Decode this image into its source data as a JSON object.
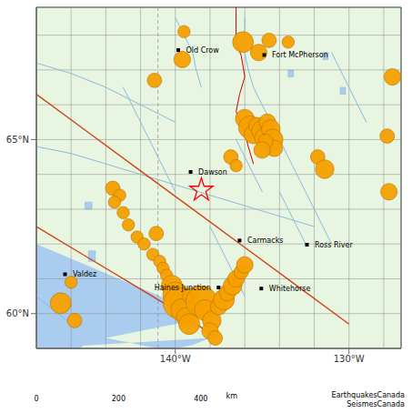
{
  "chart_data": {
    "type": "scatter",
    "xlim": [
      -148,
      -127
    ],
    "ylim": [
      59.0,
      68.8
    ],
    "xticks": [
      {
        "value": -140,
        "label": "140°W"
      },
      {
        "value": -130,
        "label": "130°W"
      }
    ],
    "yticks": [
      {
        "value": 60,
        "label": "60°N"
      },
      {
        "value": 65,
        "label": "65°N"
      }
    ],
    "land_color": "#e8f5e0",
    "grid_lines": {
      "color": "#888888",
      "x": [
        -148,
        -146,
        -144,
        -142,
        -140,
        -138,
        -136,
        -134,
        -132,
        -130,
        -128
      ],
      "y": [
        60,
        61,
        62,
        63,
        64,
        65,
        66,
        67,
        68
      ]
    },
    "water": {
      "color": "#aaccee",
      "polygons": [
        [
          [
            -148,
            61.8
          ],
          [
            -147.5,
            61.4
          ],
          [
            -147,
            61.0
          ],
          [
            -146.5,
            60.7
          ],
          [
            -146,
            60.4
          ],
          [
            -145.5,
            60.1
          ],
          [
            -145,
            59.8
          ],
          [
            -144.5,
            59.5
          ],
          [
            -144,
            59.3
          ],
          [
            -143,
            59.2
          ],
          [
            -142,
            59.1
          ],
          [
            -141,
            59.0
          ],
          [
            -140,
            59.0
          ],
          [
            -139,
            59.1
          ],
          [
            -138.5,
            59.2
          ],
          [
            -138,
            59.3
          ],
          [
            -148,
            59.0
          ]
        ],
        [
          [
            -148,
            62.2
          ],
          [
            -148,
            59.0
          ],
          [
            -146.5,
            59.0
          ],
          [
            -145.5,
            59.0
          ],
          [
            -145,
            59.2
          ],
          [
            -144,
            59.3
          ],
          [
            -143,
            59.4
          ],
          [
            -142,
            59.5
          ],
          [
            -141,
            59.6
          ],
          [
            -140,
            59.7
          ],
          [
            -139,
            59.8
          ],
          [
            -138.5,
            60.0
          ],
          [
            -148,
            62.0
          ]
        ]
      ]
    },
    "rivers": {
      "color": "#88bbdd",
      "lines": [
        [
          [
            -148,
            64.8
          ],
          [
            -146,
            64.6
          ],
          [
            -144,
            64.3
          ],
          [
            -142,
            64.0
          ],
          [
            -140,
            63.7
          ],
          [
            -138,
            63.4
          ],
          [
            -136,
            63.1
          ],
          [
            -134,
            62.8
          ],
          [
            -132,
            62.5
          ]
        ],
        [
          [
            -148,
            67.2
          ],
          [
            -146,
            66.9
          ],
          [
            -144,
            66.5
          ],
          [
            -142,
            66.0
          ],
          [
            -140,
            65.5
          ]
        ],
        [
          [
            -140,
            68.5
          ],
          [
            -139.5,
            68.0
          ],
          [
            -139.0,
            67.5
          ],
          [
            -138.8,
            67.0
          ],
          [
            -138.5,
            66.5
          ]
        ],
        [
          [
            -136,
            68.5
          ],
          [
            -136,
            67.5
          ],
          [
            -135.8,
            67.0
          ],
          [
            -135.5,
            66.5
          ],
          [
            -135.0,
            66.0
          ],
          [
            -134.5,
            65.5
          ],
          [
            -134.0,
            65.0
          ],
          [
            -133.5,
            64.5
          ],
          [
            -133.0,
            64.0
          ],
          [
            -132.5,
            63.5
          ],
          [
            -132.0,
            63.0
          ],
          [
            -131.5,
            62.5
          ],
          [
            -131.0,
            62.0
          ]
        ],
        [
          [
            -131,
            67.5
          ],
          [
            -130.5,
            67.0
          ],
          [
            -130,
            66.5
          ],
          [
            -129.5,
            66.0
          ],
          [
            -129,
            65.5
          ]
        ],
        [
          [
            -136.5,
            65.0
          ],
          [
            -136.0,
            64.5
          ],
          [
            -135.5,
            64.0
          ],
          [
            -135.0,
            63.5
          ]
        ],
        [
          [
            -143,
            66.5
          ],
          [
            -142.5,
            66.0
          ],
          [
            -142.0,
            65.5
          ],
          [
            -141.5,
            65.0
          ],
          [
            -141.0,
            64.5
          ],
          [
            -140.5,
            64.0
          ],
          [
            -140.0,
            63.5
          ]
        ],
        [
          [
            -138,
            62.5
          ],
          [
            -137.5,
            62.0
          ],
          [
            -137.0,
            61.5
          ],
          [
            -136.5,
            61.0
          ],
          [
            -136.0,
            60.5
          ]
        ],
        [
          [
            -134,
            63.5
          ],
          [
            -133.5,
            63.0
          ],
          [
            -133.0,
            62.5
          ],
          [
            -132.5,
            62.0
          ]
        ],
        [
          [
            -148,
            60.5
          ],
          [
            -147.5,
            60.3
          ],
          [
            -147.0,
            60.1
          ],
          [
            -146.5,
            59.9
          ],
          [
            -146.0,
            59.7
          ]
        ]
      ]
    },
    "lakes": {
      "polygons": [
        [
          [
            -131.5,
            67.5
          ],
          [
            -131.2,
            67.5
          ],
          [
            -131.2,
            67.3
          ],
          [
            -131.5,
            67.3
          ]
        ],
        [
          [
            -130.5,
            66.5
          ],
          [
            -130.2,
            66.5
          ],
          [
            -130.2,
            66.3
          ],
          [
            -130.5,
            66.3
          ]
        ],
        [
          [
            -133.5,
            67.0
          ],
          [
            -133.2,
            67.0
          ],
          [
            -133.2,
            66.8
          ],
          [
            -133.5,
            66.8
          ]
        ],
        [
          [
            -145.2,
            63.2
          ],
          [
            -144.8,
            63.2
          ],
          [
            -144.8,
            63.0
          ],
          [
            -145.2,
            63.0
          ]
        ],
        [
          [
            -145.0,
            61.8
          ],
          [
            -144.6,
            61.8
          ],
          [
            -144.6,
            61.5
          ],
          [
            -145.0,
            61.5
          ]
        ]
      ]
    },
    "boundary": {
      "x": -141,
      "color": "#999999",
      "line_style": "dashed"
    },
    "border": {
      "color": "#cc0000",
      "points": [
        [
          -136.5,
          68.8
        ],
        [
          -136.5,
          67.8
        ],
        [
          -136.2,
          67.4
        ],
        [
          -136.0,
          66.8
        ],
        [
          -136.3,
          66.3
        ],
        [
          -136.5,
          65.8
        ],
        [
          -136.0,
          65.2
        ],
        [
          -135.8,
          64.8
        ],
        [
          -135.5,
          64.3
        ]
      ]
    },
    "faults": {
      "color": "#cc3300",
      "lines": [
        [
          [
            -148,
            66.3
          ],
          [
            -145,
            65.2
          ],
          [
            -142,
            64.1
          ],
          [
            -139,
            63.0
          ],
          [
            -136,
            61.9
          ],
          [
            -133,
            60.8
          ],
          [
            -130,
            59.7
          ]
        ],
        [
          [
            -148,
            62.5
          ],
          [
            -145,
            61.6
          ],
          [
            -142,
            60.7
          ],
          [
            -139,
            59.8
          ],
          [
            -138,
            59.4
          ]
        ]
      ]
    },
    "earthquakes": {
      "color": "#f5a000",
      "edge_color": "#b87000",
      "points": [
        {
          "lon": -139.5,
          "lat": 68.1,
          "r": 5
        },
        {
          "lon": -136.1,
          "lat": 67.8,
          "r": 9
        },
        {
          "lon": -135.2,
          "lat": 67.5,
          "r": 7
        },
        {
          "lon": -134.6,
          "lat": 67.85,
          "r": 6
        },
        {
          "lon": -133.5,
          "lat": 67.8,
          "r": 5
        },
        {
          "lon": -139.6,
          "lat": 67.3,
          "r": 7
        },
        {
          "lon": -141.2,
          "lat": 66.7,
          "r": 6
        },
        {
          "lon": -136.0,
          "lat": 65.6,
          "r": 8
        },
        {
          "lon": -135.7,
          "lat": 65.35,
          "r": 10
        },
        {
          "lon": -135.5,
          "lat": 65.15,
          "r": 8
        },
        {
          "lon": -135.3,
          "lat": 65.4,
          "r": 7
        },
        {
          "lon": -135.0,
          "lat": 65.25,
          "r": 9
        },
        {
          "lon": -134.9,
          "lat": 65.05,
          "r": 8
        },
        {
          "lon": -134.7,
          "lat": 65.5,
          "r": 7
        },
        {
          "lon": -134.5,
          "lat": 65.3,
          "r": 8
        },
        {
          "lon": -134.4,
          "lat": 65.0,
          "r": 9
        },
        {
          "lon": -134.3,
          "lat": 64.75,
          "r": 7
        },
        {
          "lon": -134.8,
          "lat": 64.95,
          "r": 6
        },
        {
          "lon": -135.0,
          "lat": 64.7,
          "r": 7
        },
        {
          "lon": -136.8,
          "lat": 64.5,
          "r": 6
        },
        {
          "lon": -136.5,
          "lat": 64.25,
          "r": 5
        },
        {
          "lon": -131.8,
          "lat": 64.5,
          "r": 6
        },
        {
          "lon": -131.4,
          "lat": 64.15,
          "r": 8
        },
        {
          "lon": -127.8,
          "lat": 65.1,
          "r": 6
        },
        {
          "lon": -127.7,
          "lat": 63.5,
          "r": 7
        },
        {
          "lon": -127.5,
          "lat": 66.8,
          "r": 7
        },
        {
          "lon": -143.6,
          "lat": 63.6,
          "r": 6
        },
        {
          "lon": -143.2,
          "lat": 63.4,
          "r": 5
        },
        {
          "lon": -143.5,
          "lat": 63.2,
          "r": 5
        },
        {
          "lon": -143.0,
          "lat": 62.9,
          "r": 5
        },
        {
          "lon": -142.7,
          "lat": 62.55,
          "r": 5
        },
        {
          "lon": -142.2,
          "lat": 62.2,
          "r": 5
        },
        {
          "lon": -141.8,
          "lat": 62.0,
          "r": 5
        },
        {
          "lon": -141.3,
          "lat": 61.7,
          "r": 5
        },
        {
          "lon": -141.1,
          "lat": 62.3,
          "r": 6
        },
        {
          "lon": -140.9,
          "lat": 61.5,
          "r": 5
        },
        {
          "lon": -140.7,
          "lat": 61.3,
          "r": 5
        },
        {
          "lon": -140.5,
          "lat": 61.1,
          "r": 5
        },
        {
          "lon": -140.2,
          "lat": 60.8,
          "r": 9
        },
        {
          "lon": -140.0,
          "lat": 60.55,
          "r": 11
        },
        {
          "lon": -139.8,
          "lat": 60.3,
          "r": 14
        },
        {
          "lon": -139.6,
          "lat": 60.1,
          "r": 10
        },
        {
          "lon": -139.4,
          "lat": 59.9,
          "r": 8
        },
        {
          "lon": -139.2,
          "lat": 59.7,
          "r": 9
        },
        {
          "lon": -139.1,
          "lat": 60.5,
          "r": 7
        },
        {
          "lon": -138.5,
          "lat": 60.35,
          "r": 14
        },
        {
          "lon": -138.3,
          "lat": 60.1,
          "r": 9
        },
        {
          "lon": -137.9,
          "lat": 59.8,
          "r": 8
        },
        {
          "lon": -138.0,
          "lat": 59.5,
          "r": 7
        },
        {
          "lon": -137.7,
          "lat": 59.3,
          "r": 6
        },
        {
          "lon": -137.5,
          "lat": 60.2,
          "r": 7
        },
        {
          "lon": -137.2,
          "lat": 60.4,
          "r": 9
        },
        {
          "lon": -137.0,
          "lat": 60.6,
          "r": 7
        },
        {
          "lon": -136.7,
          "lat": 60.8,
          "r": 8
        },
        {
          "lon": -136.5,
          "lat": 61.0,
          "r": 7
        },
        {
          "lon": -136.2,
          "lat": 61.2,
          "r": 6
        },
        {
          "lon": -136.0,
          "lat": 61.4,
          "r": 7
        },
        {
          "lon": -146.0,
          "lat": 60.9,
          "r": 5
        },
        {
          "lon": -146.6,
          "lat": 60.3,
          "r": 9
        },
        {
          "lon": -145.8,
          "lat": 59.8,
          "r": 6
        }
      ]
    },
    "epicenter": {
      "lon": -138.5,
      "lat": 63.55,
      "marker": "star",
      "color": "red"
    },
    "cities": {
      "color": "black",
      "marker": "square",
      "points": [
        {
          "name": "Old Crow",
          "lon": -139.83,
          "lat": 67.57
        },
        {
          "name": "Fort McPherson",
          "lon": -134.88,
          "lat": 67.43
        },
        {
          "name": "Dawson",
          "lon": -139.12,
          "lat": 64.07
        },
        {
          "name": "Carmacks",
          "lon": -136.3,
          "lat": 62.1
        },
        {
          "name": "Ross River",
          "lon": -132.42,
          "lat": 61.98
        },
        {
          "name": "Valdez",
          "lon": -146.35,
          "lat": 61.13
        },
        {
          "name": "Haines Junction",
          "lon": -137.51,
          "lat": 60.75
        },
        {
          "name": "Whitehorse",
          "lon": -135.05,
          "lat": 60.72
        }
      ]
    },
    "scale_bar": {
      "xlim": [
        0,
        500
      ],
      "segment_edges": [
        0,
        100,
        200,
        300,
        400
      ],
      "ticks": [
        0,
        200,
        400
      ],
      "label": "km"
    },
    "credit": "EarthquakesCanada\nSeismesCanada"
  }
}
